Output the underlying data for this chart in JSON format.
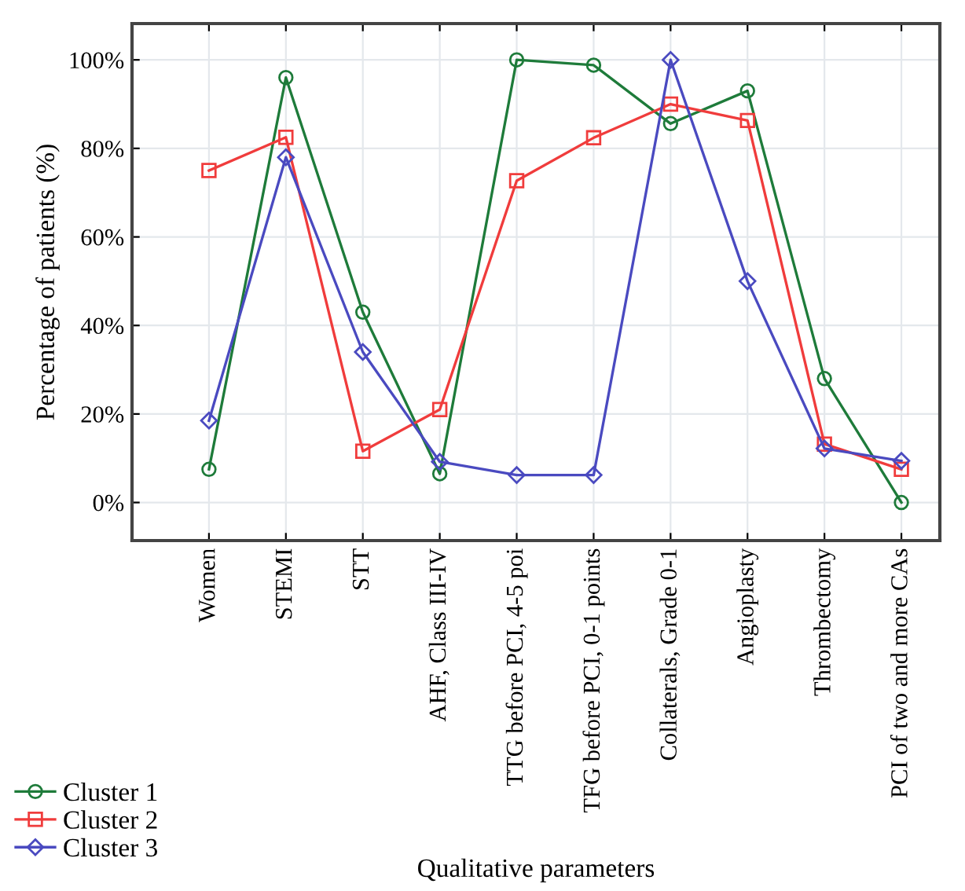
{
  "chart_data": {
    "type": "line",
    "xlabel": "Qualitative parameters",
    "ylabel": "Percentage of patients (%)",
    "categories": [
      "Women",
      "STEMI",
      "STT",
      "AHF, Class III-IV",
      "TTG before PCI, 4-5 poi",
      "TFG before PCI, 0-1 points",
      "Collaterals, Grade 0-1",
      "Angioplasty",
      "Thrombectomy",
      "PCI of two and more CAs"
    ],
    "series": [
      {
        "name": "Cluster 1",
        "color": "#1e7b3a",
        "marker": "circle",
        "values": [
          7.5,
          96,
          43,
          6.5,
          100,
          98.8,
          85.6,
          93,
          28,
          0
        ]
      },
      {
        "name": "Cluster 2",
        "color": "#f03c3c",
        "marker": "square",
        "values": [
          75,
          82.5,
          11.6,
          21,
          72.7,
          82.4,
          90,
          86.3,
          13.2,
          7.5
        ]
      },
      {
        "name": "Cluster 3",
        "color": "#4a4ac0",
        "marker": "diamond",
        "values": [
          18.5,
          78,
          34,
          9.2,
          6.2,
          6.2,
          100,
          50,
          12.2,
          9.4
        ]
      }
    ],
    "ylim": [
      -8.6,
      108.2
    ],
    "yticks": [
      {
        "value": 0,
        "label": "0%"
      },
      {
        "value": 20,
        "label": "20%"
      },
      {
        "value": 40,
        "label": "40%"
      },
      {
        "value": 60,
        "label": "60%"
      },
      {
        "value": 80,
        "label": "80%"
      },
      {
        "value": 100,
        "label": "100%"
      }
    ],
    "grid": true,
    "legend": "bottom left",
    "line_style": "solid"
  }
}
